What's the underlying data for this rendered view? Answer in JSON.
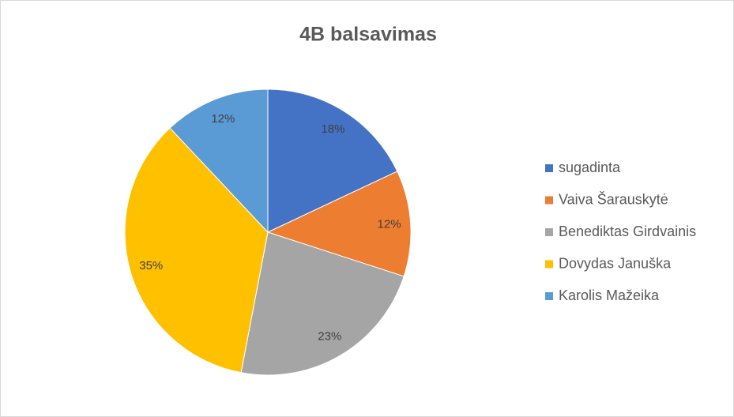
{
  "chart_data": {
    "type": "pie",
    "title": "4B balsavimas",
    "categories": [
      "sugadinta",
      "Vaiva Šarauskytė",
      "Benediktas Girdvainis",
      "Dovydas Januška",
      "Karolis Mažeika"
    ],
    "values": [
      18,
      12,
      23,
      35,
      12
    ],
    "value_labels": [
      "18%",
      "12%",
      "23%",
      "35%",
      "12%"
    ],
    "colors": [
      "#4472c4",
      "#ed7d31",
      "#a5a5a5",
      "#ffc000",
      "#5b9bd5"
    ],
    "legend": "right"
  }
}
